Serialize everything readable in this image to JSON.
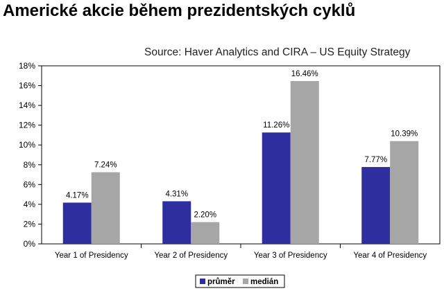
{
  "page_title": "Americké akcie během prezidentských cyklů",
  "chart_data": {
    "type": "bar",
    "subtitle": "Source: Haver Analytics and CIRA – US Equity Strategy",
    "categories": [
      "Year 1 of Presidency",
      "Year 2 of Presidency",
      "Year 3 of Presidency",
      "Year 4 of Presidency"
    ],
    "series": [
      {
        "name": "průměr",
        "values": [
          4.17,
          4.31,
          11.26,
          7.77
        ],
        "labels": [
          "4.17%",
          "4.31%",
          "11.26%",
          "7.77%"
        ],
        "color": "#2e2e9e"
      },
      {
        "name": "medián",
        "values": [
          7.24,
          2.2,
          16.46,
          10.39
        ],
        "labels": [
          "7.24%",
          "2.20%",
          "16.46%",
          "10.39%"
        ],
        "color": "#a6a6a6"
      }
    ],
    "ylim": [
      0,
      18
    ],
    "yticks": [
      "0%",
      "2%",
      "4%",
      "6%",
      "8%",
      "10%",
      "12%",
      "14%",
      "16%",
      "18%"
    ],
    "legend_position": "bottom",
    "grid": false
  }
}
